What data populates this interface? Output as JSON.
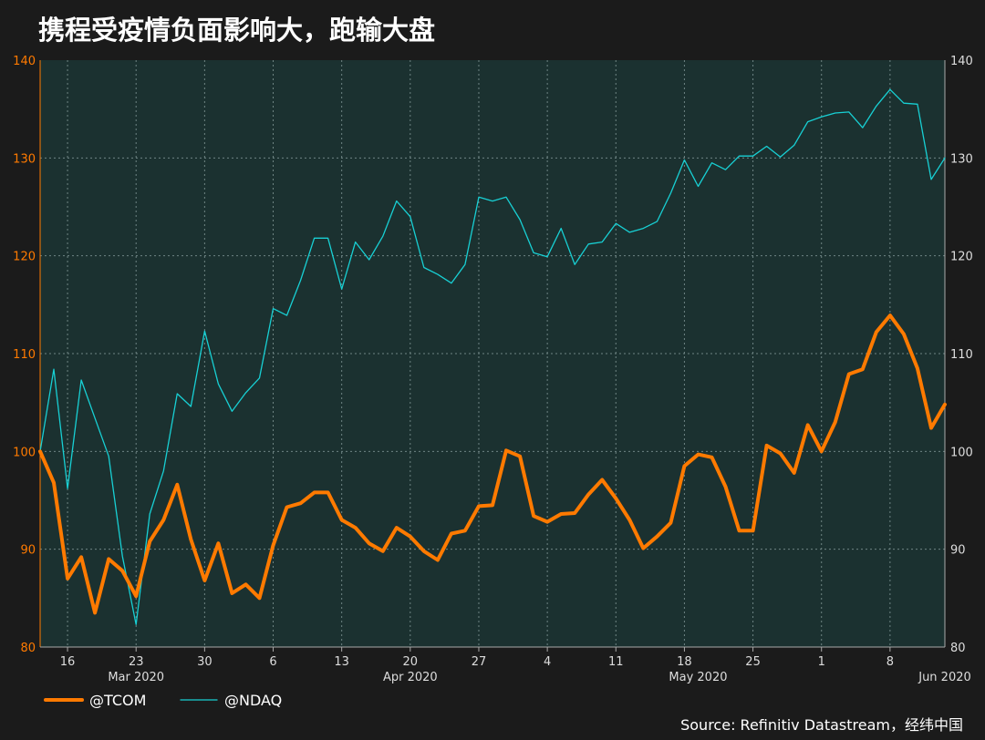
{
  "title": "携程受疫情负面影响大，跑输大盘",
  "source": "Source: Refinitiv Datastream，经纬中国",
  "colors": {
    "background": "#1b1b1b",
    "plot_background": "#1b3130",
    "tcom": "#ff7a00",
    "ndaq": "#18d0d4",
    "left_axis": "#ff7a00"
  },
  "chart_data": {
    "type": "line",
    "title": "携程受疫情负面影响大，跑输大盘",
    "ylim": [
      80,
      140
    ],
    "y_ticks": [
      "80",
      "90",
      "100",
      "110",
      "120",
      "130",
      "140"
    ],
    "x_tick_labels": [
      "16",
      "23",
      "30",
      "6",
      "13",
      "20",
      "27",
      "4",
      "11",
      "18",
      "25",
      "1",
      "8"
    ],
    "x_tick_index": [
      2,
      7,
      12,
      17,
      22,
      27,
      32,
      37,
      42,
      47,
      52,
      57,
      62
    ],
    "month_labels": [
      "Mar 2020",
      "Apr 2020",
      "May 2020",
      "Jun 2020"
    ],
    "month_index": [
      7,
      27,
      48,
      66
    ],
    "grid": true,
    "legend_position": "bottom-left",
    "series": [
      {
        "name": "@TCOM",
        "values": [
          100,
          96.8,
          87,
          89.2,
          83.5,
          89,
          87.8,
          85.2,
          90.8,
          93,
          96.6,
          91,
          86.8,
          90.6,
          85.5,
          86.4,
          85,
          90.4,
          94.3,
          94.7,
          95.8,
          95.8,
          93,
          92.2,
          90.6,
          89.8,
          92.2,
          91.3,
          89.8,
          88.9,
          91.6,
          91.9,
          94.4,
          94.5,
          100.1,
          99.5,
          93.4,
          92.8,
          93.6,
          93.7,
          95.6,
          97.1,
          95.2,
          93,
          90.1,
          91.3,
          92.7,
          98.5,
          99.7,
          99.4,
          96.4,
          91.9,
          91.9,
          100.6,
          99.8,
          97.8,
          102.7,
          100,
          103,
          107.9,
          108.4,
          112.2,
          113.9,
          112,
          108.5,
          102.4,
          104.8
        ]
      },
      {
        "name": "@NDAQ",
        "values": [
          100,
          108.4,
          96.2,
          107.3,
          103.4,
          99.5,
          89.3,
          82.3,
          93.6,
          98,
          105.9,
          104.6,
          112.3,
          106.9,
          104.1,
          106,
          107.5,
          114.6,
          113.9,
          117.5,
          121.8,
          121.8,
          116.6,
          121.4,
          119.6,
          122,
          125.6,
          124,
          118.8,
          118.1,
          117.2,
          119.1,
          126,
          125.6,
          126,
          123.7,
          120.3,
          119.9,
          122.8,
          119.1,
          121.2,
          121.4,
          123.3,
          122.4,
          122.8,
          123.5,
          126.4,
          129.8,
          127.1,
          129.5,
          128.8,
          130.2,
          130.2,
          131.2,
          130.1,
          131.3,
          133.7,
          134.2,
          134.6,
          134.7,
          133.1,
          135.3,
          137,
          135.6,
          135.5,
          127.8,
          130
        ]
      }
    ]
  }
}
